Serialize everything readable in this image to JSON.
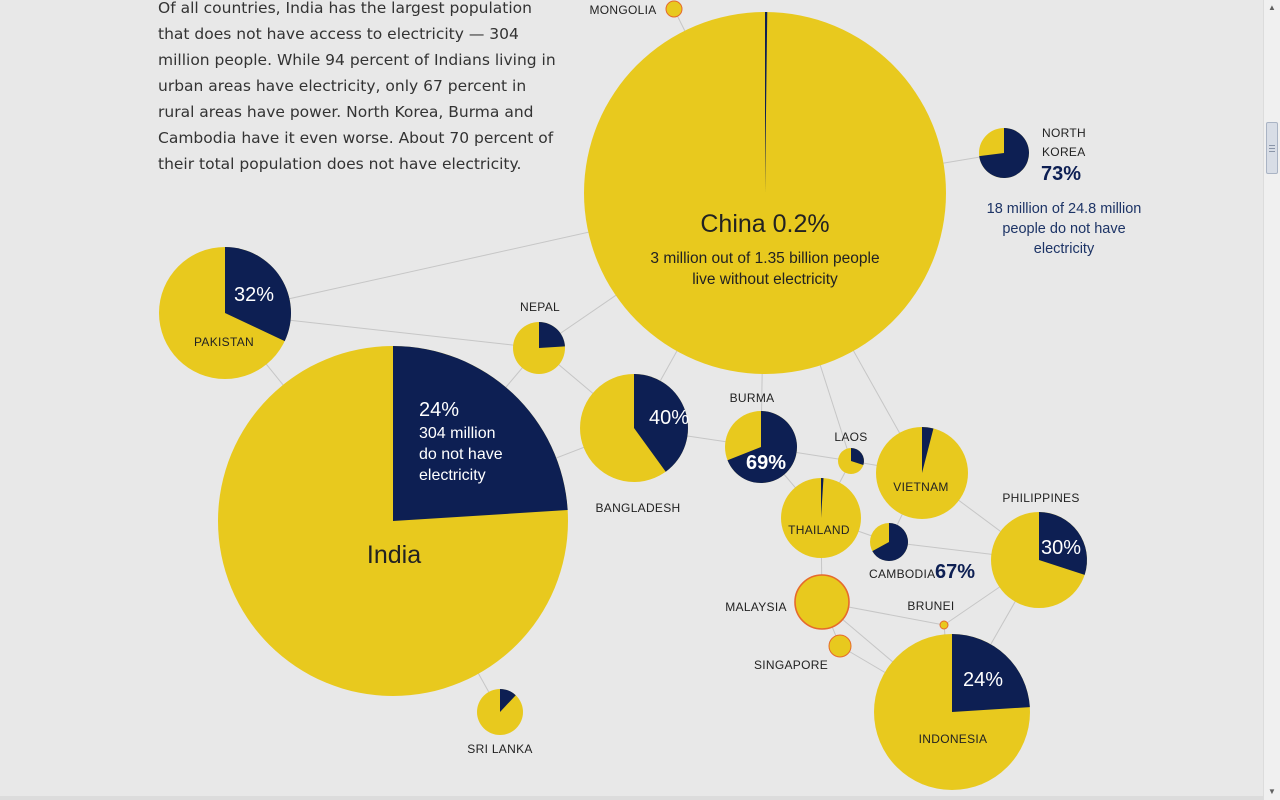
{
  "intro_text": "Of all countries, India has the largest population that does not have access to electricity — 304 million people. While 94 percent of Indians living in urban areas have electricity, only 67 percent in rural areas have power. North Korea, Burma and Cambodia have it even worse. About 70 percent of their total population does not have electricity.",
  "colors": {
    "yellow": "#e8c91e",
    "navy": "#0d1f53",
    "orange_ring": "#e66a2c",
    "link": "#c6c6c6",
    "text": "#222222"
  },
  "chart_data": {
    "type": "pie",
    "title": "",
    "value_meaning": "share of population without electricity",
    "countries": [
      {
        "id": "china",
        "name": "China",
        "pct": 0.2,
        "pct_label": "China 0.2%",
        "note": [
          "3 million out of 1.35 billion people",
          "live without electricity"
        ]
      },
      {
        "id": "india",
        "name": "India",
        "pct": 24,
        "pct_label": "24%",
        "note": [
          "304 million",
          "do not have",
          "electricity"
        ]
      },
      {
        "id": "pakistan",
        "name": "PAKISTAN",
        "pct": 32,
        "pct_label": "32%"
      },
      {
        "id": "nepal",
        "name": "NEPAL",
        "pct": 24
      },
      {
        "id": "bangladesh",
        "name": "BANGLADESH",
        "pct": 40,
        "pct_label": "40%"
      },
      {
        "id": "burma",
        "name": "BURMA",
        "pct": 69,
        "pct_label": "69%"
      },
      {
        "id": "laos",
        "name": "LAOS",
        "pct": 30
      },
      {
        "id": "vietnam",
        "name": "VIETNAM",
        "pct": 4
      },
      {
        "id": "thailand",
        "name": "THAILAND",
        "pct": 1
      },
      {
        "id": "cambodia",
        "name": "CAMBODIA",
        "pct": 67,
        "pct_label": "67%"
      },
      {
        "id": "philippines",
        "name": "PHILIPPINES",
        "pct": 30,
        "pct_label": "30%"
      },
      {
        "id": "malaysia",
        "name": "MALAYSIA",
        "pct": 0
      },
      {
        "id": "brunei",
        "name": "BRUNEI",
        "pct": 0
      },
      {
        "id": "singapore",
        "name": "SINGAPORE",
        "pct": 0
      },
      {
        "id": "indonesia",
        "name": "INDONESIA",
        "pct": 24,
        "pct_label": "24%"
      },
      {
        "id": "sri_lanka",
        "name": "SRI LANKA",
        "pct": 12
      },
      {
        "id": "mongolia",
        "name": "MONGOLIA",
        "pct": 0
      },
      {
        "id": "north_korea",
        "name": "NORTH KOREA",
        "name_lines": [
          "NORTH",
          "KOREA"
        ],
        "pct": 73,
        "pct_label": "73%",
        "note": [
          "18 million of 24.8 million",
          "people do not have",
          "electricity"
        ]
      }
    ],
    "links": [
      [
        "china",
        "pakistan"
      ],
      [
        "china",
        "nepal"
      ],
      [
        "china",
        "bangladesh"
      ],
      [
        "china",
        "burma"
      ],
      [
        "china",
        "laos"
      ],
      [
        "china",
        "vietnam"
      ],
      [
        "china",
        "mongolia"
      ],
      [
        "china",
        "north_korea"
      ],
      [
        "pakistan",
        "nepal"
      ],
      [
        "pakistan",
        "india"
      ],
      [
        "india",
        "nepal"
      ],
      [
        "india",
        "bangladesh"
      ],
      [
        "india",
        "sri_lanka"
      ],
      [
        "nepal",
        "bangladesh"
      ],
      [
        "bangladesh",
        "burma"
      ],
      [
        "burma",
        "thailand"
      ],
      [
        "burma",
        "laos"
      ],
      [
        "laos",
        "thailand"
      ],
      [
        "laos",
        "vietnam"
      ],
      [
        "thailand",
        "cambodia"
      ],
      [
        "thailand",
        "malaysia"
      ],
      [
        "vietnam",
        "cambodia"
      ],
      [
        "vietnam",
        "philippines"
      ],
      [
        "cambodia",
        "philippines"
      ],
      [
        "malaysia",
        "brunei"
      ],
      [
        "malaysia",
        "singapore"
      ],
      [
        "malaysia",
        "indonesia"
      ],
      [
        "singapore",
        "indonesia"
      ],
      [
        "brunei",
        "indonesia"
      ],
      [
        "philippines",
        "indonesia"
      ],
      [
        "philippines",
        "brunei"
      ]
    ]
  }
}
